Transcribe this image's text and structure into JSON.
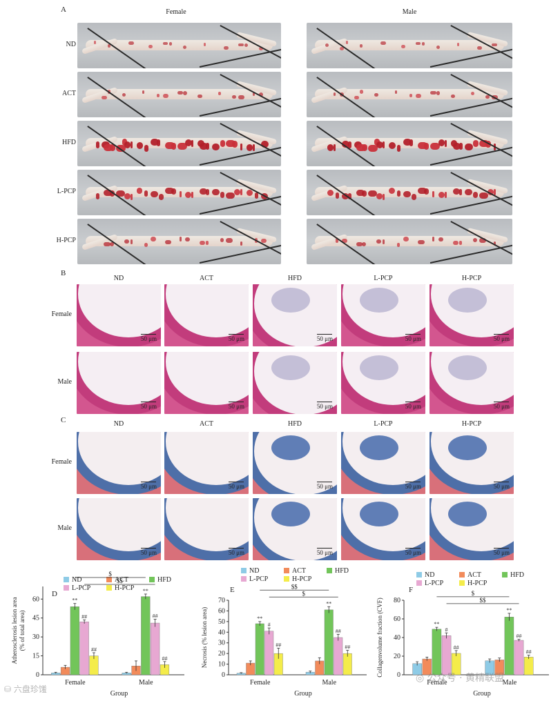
{
  "panels": {
    "A": "A",
    "B": "B",
    "C": "C",
    "D": "D",
    "E": "E",
    "F": "F"
  },
  "sexes": [
    "Female",
    "Male"
  ],
  "groups": [
    "ND",
    "ACT",
    "HFD",
    "L-PCP",
    "H-PCP"
  ],
  "scale_label": "50 μm",
  "colors": {
    "ND": "#8ecbe6",
    "ACT": "#f28b5b",
    "HFD": "#72c55a",
    "L-PCP": "#e7a8d2",
    "H-PCP": "#f4ec4a"
  },
  "chart_data": [
    {
      "type": "bar",
      "panel": "D",
      "ylabel": "Atherosclerosis lesion area\n(% of total area)",
      "xlabel": "Group",
      "categories": [
        "Female",
        "Male"
      ],
      "ylim": [
        0,
        70
      ],
      "yticks": [
        0,
        15,
        30,
        45,
        60
      ],
      "series": [
        {
          "name": "ND",
          "values": [
            1.5,
            1.5
          ],
          "errors": [
            0.5,
            0.5
          ]
        },
        {
          "name": "ACT",
          "values": [
            6,
            7
          ],
          "errors": [
            1.5,
            4
          ]
        },
        {
          "name": "HFD",
          "values": [
            54,
            62
          ],
          "errors": [
            2.5,
            2
          ]
        },
        {
          "name": "L-PCP",
          "values": [
            42,
            41
          ],
          "errors": [
            1.5,
            3
          ]
        },
        {
          "name": "H-PCP",
          "values": [
            15,
            8
          ],
          "errors": [
            2.5,
            2.5
          ]
        }
      ],
      "annotations": {
        "HFD": [
          "**",
          "**"
        ],
        "L-PCP": [
          "##",
          "##"
        ],
        "H-PCP": [
          "##",
          "##"
        ]
      },
      "brackets": [
        {
          "label": "$$",
          "from": "L-PCP",
          "to": "L-PCP"
        },
        {
          "label": "$",
          "from": "HFD",
          "to": "HFD"
        }
      ]
    },
    {
      "type": "bar",
      "panel": "E",
      "ylabel": "Necrosis (% lesion area)",
      "xlabel": "Group",
      "categories": [
        "Female",
        "Male"
      ],
      "ylim": [
        0,
        70
      ],
      "yticks": [
        0,
        10,
        20,
        30,
        40,
        50,
        60,
        70
      ],
      "series": [
        {
          "name": "ND",
          "values": [
            1.5,
            2.5
          ],
          "errors": [
            0.5,
            1
          ]
        },
        {
          "name": "ACT",
          "values": [
            11,
            13
          ],
          "errors": [
            2,
            3
          ]
        },
        {
          "name": "HFD",
          "values": [
            48,
            61
          ],
          "errors": [
            2,
            3
          ]
        },
        {
          "name": "L-PCP",
          "values": [
            41,
            35
          ],
          "errors": [
            3,
            3
          ]
        },
        {
          "name": "H-PCP",
          "values": [
            20,
            20
          ],
          "errors": [
            5,
            3
          ]
        }
      ],
      "annotations": {
        "HFD": [
          "**",
          "**"
        ],
        "L-PCP": [
          "#",
          "##"
        ],
        "H-PCP": [
          "##",
          "##"
        ]
      },
      "brackets": [
        {
          "label": "$",
          "from": "L-PCP",
          "to": "L-PCP"
        },
        {
          "label": "$$",
          "from": "HFD",
          "to": "HFD"
        }
      ]
    },
    {
      "type": "bar",
      "panel": "F",
      "ylabel": "Collagenvolume fraction (CVF)",
      "xlabel": "Group",
      "categories": [
        "Female",
        "Male"
      ],
      "ylim": [
        0,
        80
      ],
      "yticks": [
        0,
        20,
        40,
        60,
        80
      ],
      "series": [
        {
          "name": "ND",
          "values": [
            12,
            15
          ],
          "errors": [
            2,
            2
          ]
        },
        {
          "name": "ACT",
          "values": [
            17,
            16
          ],
          "errors": [
            2,
            2
          ]
        },
        {
          "name": "HFD",
          "values": [
            49,
            62
          ],
          "errors": [
            2,
            4
          ]
        },
        {
          "name": "L-PCP",
          "values": [
            42,
            37
          ],
          "errors": [
            3,
            1
          ]
        },
        {
          "name": "H-PCP",
          "values": [
            23,
            19
          ],
          "errors": [
            3,
            2
          ]
        }
      ],
      "annotations": {
        "HFD": [
          "**",
          "**"
        ],
        "L-PCP": [
          "#",
          "##"
        ],
        "H-PCP": [
          "##",
          "##"
        ]
      },
      "brackets": [
        {
          "label": "$$",
          "from": "L-PCP",
          "to": "L-PCP"
        },
        {
          "label": "$",
          "from": "HFD",
          "to": "HFD"
        }
      ]
    }
  ],
  "watermark_left": "六盘珍馐",
  "watermark_right": "公众号 · 黄精联盟"
}
